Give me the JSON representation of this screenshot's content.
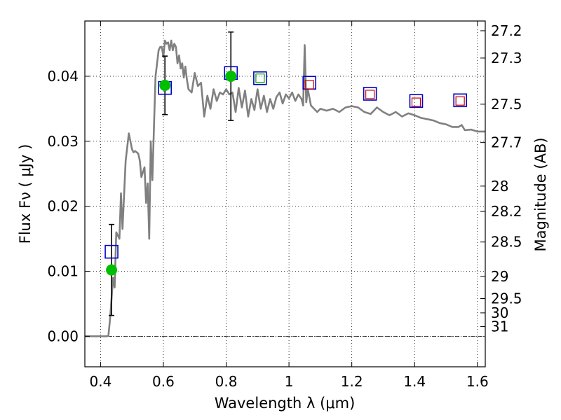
{
  "chart_data": {
    "type": "scatter",
    "xlabel": "Wavelength  λ (μm)",
    "ylabel": "Flux  Fν  ( μJy )",
    "y2label": "Magnitude (AB)",
    "xlim": [
      0.35,
      1.625
    ],
    "ylim": [
      -0.0047,
      0.0485
    ],
    "grid": true,
    "x_ticks": [
      {
        "v": 0.4,
        "label": "0.4"
      },
      {
        "v": 0.6,
        "label": "0.6"
      },
      {
        "v": 0.8,
        "label": "0.8"
      },
      {
        "v": 1.0,
        "label": "1"
      },
      {
        "v": 1.2,
        "label": "1.2"
      },
      {
        "v": 1.4,
        "label": "1.4"
      },
      {
        "v": 1.6,
        "label": "1.6"
      }
    ],
    "y_ticks": [
      {
        "v": 0.0,
        "label": "0.00"
      },
      {
        "v": 0.01,
        "label": "0.01"
      },
      {
        "v": 0.02,
        "label": "0.02"
      },
      {
        "v": 0.03,
        "label": "0.03"
      },
      {
        "v": 0.04,
        "label": "0.04"
      }
    ],
    "mag_ticks": [
      {
        "flux": 0.047,
        "label": "27.2"
      },
      {
        "flux": 0.0428,
        "label": "27.3"
      },
      {
        "flux": 0.0357,
        "label": "27.5"
      },
      {
        "flux": 0.0298,
        "label": "27.7"
      },
      {
        "flux": 0.0231,
        "label": "28"
      },
      {
        "flux": 0.0192,
        "label": "28.2"
      },
      {
        "flux": 0.0145,
        "label": "28.5"
      },
      {
        "flux": 0.0092,
        "label": "29"
      },
      {
        "flux": 0.0058,
        "label": "29.5"
      },
      {
        "flux": 0.0036,
        "label": "30"
      },
      {
        "flux": 0.0015,
        "label": "31"
      }
    ],
    "colors": {
      "model": "#808080",
      "obs_fill": "#00bf00",
      "box_blue": "#0000cc",
      "box_red": "#cc0000",
      "box_green": "#00aa00",
      "errorbar": "#000000",
      "zero_line": "#000000"
    },
    "series": [
      {
        "type": "line",
        "x": [
          0.35,
          0.38,
          0.4,
          0.41,
          0.42,
          0.425,
          0.43,
          0.44,
          0.445,
          0.45,
          0.46,
          0.465,
          0.47,
          0.48,
          0.49,
          0.5,
          0.505,
          0.51,
          0.52,
          0.525,
          0.53,
          0.54,
          0.545,
          0.55,
          0.555,
          0.56,
          0.565,
          0.57,
          0.575,
          0.58,
          0.585,
          0.59,
          0.595,
          0.6,
          0.605,
          0.61,
          0.615,
          0.62,
          0.625,
          0.63,
          0.635,
          0.64,
          0.645,
          0.65,
          0.655,
          0.66,
          0.665,
          0.67,
          0.675,
          0.68,
          0.69,
          0.7,
          0.71,
          0.72,
          0.73,
          0.74,
          0.75,
          0.76,
          0.77,
          0.78,
          0.79,
          0.8,
          0.81,
          0.82,
          0.83,
          0.84,
          0.85,
          0.86,
          0.87,
          0.88,
          0.89,
          0.9,
          0.91,
          0.92,
          0.93,
          0.94,
          0.95,
          0.96,
          0.97,
          0.98,
          0.99,
          1.0,
          1.01,
          1.02,
          1.03,
          1.04,
          1.045,
          1.05,
          1.055,
          1.06,
          1.07,
          1.08,
          1.09,
          1.1,
          1.12,
          1.14,
          1.16,
          1.18,
          1.2,
          1.22,
          1.24,
          1.26,
          1.28,
          1.3,
          1.32,
          1.34,
          1.36,
          1.38,
          1.4,
          1.42,
          1.44,
          1.46,
          1.48,
          1.5,
          1.52,
          1.54,
          1.55,
          1.56,
          1.58,
          1.6,
          1.625
        ],
        "y": [
          0.0,
          0.0,
          0.0,
          0.0,
          0.0,
          0.0001,
          0.0025,
          0.009,
          0.0075,
          0.016,
          0.015,
          0.022,
          0.0165,
          0.027,
          0.0312,
          0.0288,
          0.0283,
          0.0285,
          0.0281,
          0.027,
          0.0245,
          0.026,
          0.0205,
          0.0235,
          0.015,
          0.03,
          0.024,
          0.032,
          0.04,
          0.042,
          0.044,
          0.0445,
          0.0445,
          0.043,
          0.0455,
          0.045,
          0.0452,
          0.044,
          0.0455,
          0.044,
          0.045,
          0.0445,
          0.042,
          0.0432,
          0.0412,
          0.042,
          0.0398,
          0.0415,
          0.0395,
          0.038,
          0.0375,
          0.0405,
          0.0385,
          0.039,
          0.0338,
          0.037,
          0.035,
          0.038,
          0.0362,
          0.0375,
          0.0372,
          0.038,
          0.0372,
          0.0375,
          0.0345,
          0.0382,
          0.0352,
          0.0378,
          0.0338,
          0.0365,
          0.0348,
          0.038,
          0.035,
          0.037,
          0.0345,
          0.0365,
          0.035,
          0.0368,
          0.0375,
          0.0358,
          0.0372,
          0.0366,
          0.0375,
          0.0362,
          0.0372,
          0.0365,
          0.0355,
          0.0448,
          0.036,
          0.038,
          0.0355,
          0.035,
          0.0345,
          0.035,
          0.0347,
          0.035,
          0.0345,
          0.0352,
          0.0354,
          0.0352,
          0.0345,
          0.0342,
          0.0352,
          0.0345,
          0.034,
          0.0345,
          0.0338,
          0.0343,
          0.034,
          0.0336,
          0.0334,
          0.0332,
          0.0328,
          0.0326,
          0.0322,
          0.0322,
          0.0325,
          0.0317,
          0.0318,
          0.0315,
          0.0315
        ]
      },
      {
        "name": "obs",
        "x": [
          0.435,
          0.605,
          0.815
        ],
        "y": [
          0.0102,
          0.0386,
          0.04
        ],
        "yerr": [
          0.007,
          0.0045,
          0.0068
        ]
      },
      {
        "name": "model-blue",
        "x": [
          0.435,
          0.605,
          0.815,
          0.908,
          1.065,
          1.258,
          1.405,
          1.545
        ],
        "y": [
          0.013,
          0.0382,
          0.0405,
          0.0397,
          0.039,
          0.0373,
          0.0362,
          0.0363
        ]
      },
      {
        "name": "model-green",
        "x": [
          0.908
        ],
        "y": [
          0.0397
        ]
      },
      {
        "name": "model-red",
        "x": [
          1.065,
          1.258,
          1.405,
          1.545
        ],
        "y": [
          0.0387,
          0.0372,
          0.036,
          0.0362
        ]
      }
    ]
  }
}
